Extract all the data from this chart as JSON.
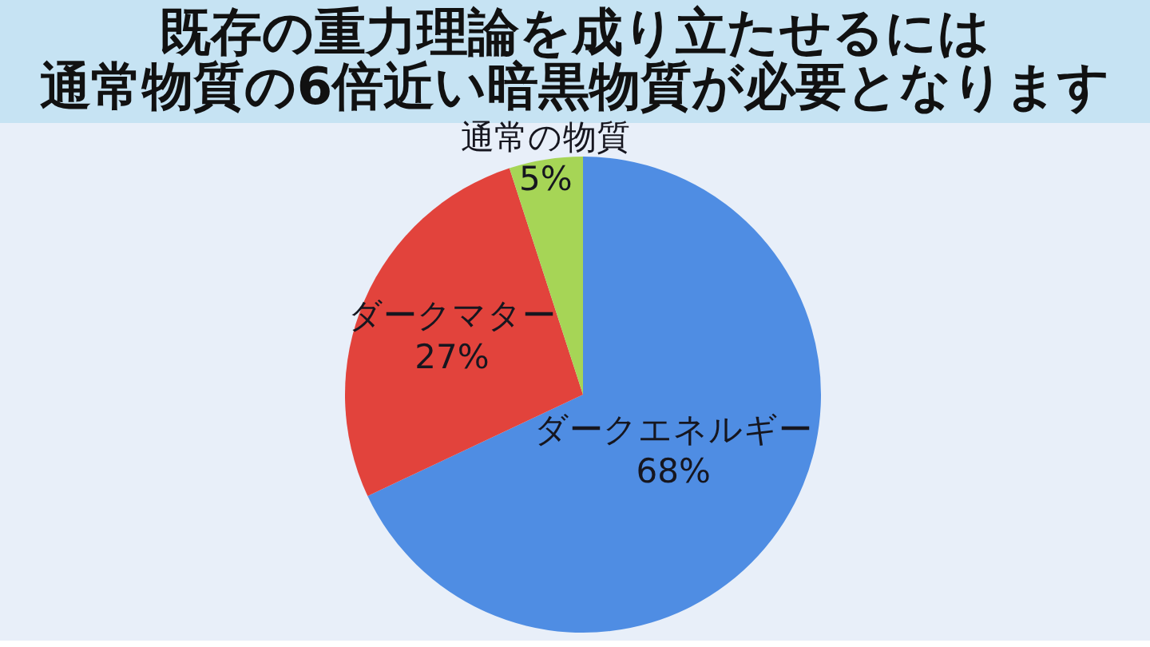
{
  "chart_data": {
    "type": "pie",
    "title": "既存の重力理論を成り立たせるには",
    "subtitle": "通常物質の6倍近い暗黒物質が必要となります",
    "categories": [
      "ダークエネルギー",
      "ダークマター",
      "通常の物質"
    ],
    "values": [
      68,
      27,
      5
    ],
    "colors": [
      "#4f8de3",
      "#e2433c",
      "#a6d556"
    ],
    "value_labels": [
      "68%",
      "27%",
      "5%"
    ]
  }
}
